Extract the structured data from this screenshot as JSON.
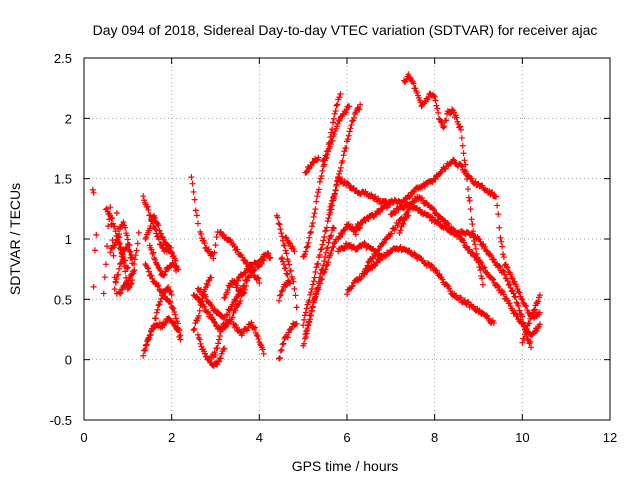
{
  "chart_data": {
    "type": "scatter",
    "title": "Day 094 of 2018, Sidereal Day-to-day VTEC variation (SDTVAR) for receiver ajac",
    "xlabel": "GPS time / hours",
    "ylabel": "SDTVAR / TECUs",
    "xlim": [
      0,
      12
    ],
    "ylim": [
      -0.5,
      2.5
    ],
    "xticks": [
      "0",
      "2",
      "4",
      "6",
      "8",
      "10",
      "12"
    ],
    "yticks": [
      "-0.5",
      "0",
      "0.5",
      "1",
      "1.5",
      "2",
      "2.5"
    ],
    "grid": true,
    "marker": "plus",
    "color": "#ff0000",
    "tracks": [
      [
        [
          0.2,
          1.4
        ],
        [
          0.22,
          1.38
        ]
      ],
      [
        [
          0.22,
          0.6
        ],
        [
          0.25,
          0.9
        ],
        [
          0.28,
          1.05
        ]
      ],
      [
        [
          0.45,
          0.55
        ],
        [
          0.5,
          0.8
        ],
        [
          0.55,
          1.1
        ],
        [
          0.6,
          1.25
        ],
        [
          0.65,
          1.0
        ],
        [
          0.7,
          0.7
        ],
        [
          0.75,
          0.55
        ]
      ],
      [
        [
          0.5,
          1.25
        ],
        [
          0.6,
          1.2
        ],
        [
          0.7,
          1.1
        ],
        [
          0.8,
          0.95
        ],
        [
          0.9,
          0.85
        ],
        [
          1.0,
          0.75
        ]
      ],
      [
        [
          0.6,
          0.9
        ],
        [
          0.7,
          0.95
        ],
        [
          0.8,
          1.05
        ],
        [
          0.9,
          1.15
        ],
        [
          1.0,
          1.0
        ],
        [
          1.1,
          0.85
        ]
      ],
      [
        [
          0.7,
          0.6
        ],
        [
          0.8,
          0.75
        ],
        [
          0.9,
          0.9
        ],
        [
          1.0,
          0.95
        ],
        [
          1.1,
          0.8
        ]
      ],
      [
        [
          0.75,
          1.2
        ],
        [
          0.8,
          1.0
        ],
        [
          0.9,
          0.8
        ],
        [
          1.0,
          0.6
        ],
        [
          1.1,
          0.65
        ],
        [
          1.15,
          0.75
        ]
      ],
      [
        [
          0.8,
          0.55
        ],
        [
          0.9,
          0.6
        ],
        [
          1.0,
          0.65
        ],
        [
          1.1,
          0.7
        ],
        [
          1.2,
          0.9
        ],
        [
          1.25,
          1.05
        ]
      ],
      [
        [
          1.35,
          1.35
        ],
        [
          1.45,
          1.25
        ],
        [
          1.55,
          1.15
        ],
        [
          1.65,
          1.05
        ],
        [
          1.75,
          0.95
        ],
        [
          1.85,
          0.9
        ],
        [
          1.95,
          0.92
        ],
        [
          2.05,
          0.85
        ],
        [
          2.15,
          0.75
        ]
      ],
      [
        [
          1.4,
          1.0
        ],
        [
          1.5,
          1.1
        ],
        [
          1.6,
          1.2
        ],
        [
          1.7,
          1.1
        ],
        [
          1.8,
          1.0
        ],
        [
          1.9,
          0.95
        ],
        [
          2.0,
          0.9
        ]
      ],
      [
        [
          1.5,
          0.95
        ],
        [
          1.6,
          0.85
        ],
        [
          1.7,
          0.75
        ],
        [
          1.8,
          0.7
        ],
        [
          1.9,
          0.75
        ],
        [
          2.0,
          0.8
        ],
        [
          2.1,
          0.75
        ]
      ],
      [
        [
          1.4,
          0.8
        ],
        [
          1.5,
          0.7
        ],
        [
          1.6,
          0.65
        ],
        [
          1.7,
          0.6
        ],
        [
          1.8,
          0.55
        ],
        [
          1.9,
          0.5
        ],
        [
          2.0,
          0.45
        ],
        [
          2.1,
          0.35
        ],
        [
          2.2,
          0.2
        ]
      ],
      [
        [
          1.4,
          0.1
        ],
        [
          1.5,
          0.2
        ],
        [
          1.6,
          0.3
        ],
        [
          1.7,
          0.45
        ],
        [
          1.8,
          0.55
        ],
        [
          1.9,
          0.6
        ],
        [
          2.0,
          0.55
        ]
      ],
      [
        [
          1.35,
          0.05
        ],
        [
          1.45,
          0.15
        ],
        [
          1.55,
          0.25
        ],
        [
          1.65,
          0.3
        ],
        [
          1.75,
          0.28
        ],
        [
          1.85,
          0.3
        ],
        [
          1.95,
          0.35
        ],
        [
          2.05,
          0.3
        ],
        [
          2.15,
          0.25
        ],
        [
          2.2,
          0.15
        ]
      ],
      [
        [
          2.45,
          1.5
        ],
        [
          2.5,
          1.4
        ],
        [
          2.55,
          1.25
        ],
        [
          2.6,
          1.12
        ]
      ],
      [
        [
          2.65,
          1.05
        ],
        [
          2.75,
          0.95
        ],
        [
          2.85,
          0.9
        ],
        [
          2.95,
          0.85
        ],
        [
          3.0,
          0.95
        ],
        [
          3.05,
          1.05
        ]
      ],
      [
        [
          3.1,
          1.05
        ],
        [
          3.3,
          1.0
        ],
        [
          3.5,
          0.9
        ],
        [
          3.7,
          0.8
        ],
        [
          3.9,
          0.7
        ],
        [
          4.0,
          0.65
        ]
      ],
      [
        [
          3.4,
          0.62
        ],
        [
          3.6,
          0.7
        ],
        [
          3.8,
          0.78
        ],
        [
          4.0,
          0.82
        ],
        [
          4.15,
          0.88
        ],
        [
          4.25,
          0.85
        ]
      ],
      [
        [
          2.5,
          0.25
        ],
        [
          2.6,
          0.35
        ],
        [
          2.7,
          0.5
        ],
        [
          2.8,
          0.62
        ],
        [
          2.9,
          0.68
        ]
      ],
      [
        [
          2.6,
          0.6
        ],
        [
          2.8,
          0.5
        ],
        [
          3.0,
          0.4
        ],
        [
          3.2,
          0.35
        ]
      ],
      [
        [
          2.5,
          0.55
        ],
        [
          2.7,
          0.45
        ],
        [
          2.9,
          0.35
        ],
        [
          3.1,
          0.25
        ],
        [
          3.3,
          0.3
        ],
        [
          3.5,
          0.45
        ],
        [
          3.7,
          0.6
        ]
      ],
      [
        [
          3.3,
          0.4
        ],
        [
          3.5,
          0.52
        ],
        [
          3.7,
          0.66
        ],
        [
          3.9,
          0.76
        ],
        [
          4.1,
          0.82
        ]
      ],
      [
        [
          3.2,
          0.5
        ],
        [
          3.3,
          0.6
        ],
        [
          3.4,
          0.65
        ],
        [
          3.5,
          0.6
        ],
        [
          3.6,
          0.55
        ]
      ],
      [
        [
          2.6,
          0.2
        ],
        [
          2.7,
          0.1
        ],
        [
          2.8,
          0.02
        ],
        [
          2.9,
          -0.02
        ],
        [
          3.0,
          -0.05
        ],
        [
          3.1,
          0.0
        ],
        [
          3.2,
          0.1
        ]
      ],
      [
        [
          2.9,
          0.02
        ],
        [
          3.0,
          0.05
        ],
        [
          3.1,
          0.2
        ],
        [
          3.2,
          0.3
        ],
        [
          3.3,
          0.4
        ]
      ],
      [
        [
          3.4,
          0.3
        ],
        [
          3.5,
          0.25
        ],
        [
          3.6,
          0.22
        ],
        [
          3.7,
          0.25
        ],
        [
          3.8,
          0.3
        ],
        [
          3.9,
          0.25
        ],
        [
          4.0,
          0.15
        ],
        [
          4.1,
          0.05
        ]
      ],
      [
        [
          4.4,
          1.2
        ],
        [
          4.5,
          1.05
        ],
        [
          4.6,
          0.9
        ],
        [
          4.7,
          0.75
        ],
        [
          4.8,
          0.6
        ],
        [
          4.85,
          0.45
        ]
      ],
      [
        [
          4.45,
          0.5
        ],
        [
          4.55,
          0.6
        ],
        [
          4.65,
          0.65
        ]
      ],
      [
        [
          4.5,
          0.85
        ],
        [
          4.6,
          0.75
        ],
        [
          4.7,
          0.62
        ]
      ],
      [
        [
          4.6,
          1.0
        ],
        [
          4.7,
          0.95
        ],
        [
          4.8,
          0.9
        ]
      ],
      [
        [
          4.45,
          0.0
        ],
        [
          4.55,
          0.15
        ],
        [
          4.65,
          0.2
        ],
        [
          4.75,
          0.28
        ],
        [
          4.85,
          0.3
        ]
      ],
      [
        [
          5.0,
          0.85
        ],
        [
          5.1,
          0.95
        ],
        [
          5.2,
          1.1
        ],
        [
          5.3,
          1.3
        ],
        [
          5.4,
          1.5
        ],
        [
          5.5,
          1.65
        ],
        [
          5.6,
          1.8
        ],
        [
          5.7,
          2.0
        ],
        [
          5.8,
          2.15
        ],
        [
          5.85,
          2.2
        ]
      ],
      [
        [
          5.05,
          1.55
        ],
        [
          5.15,
          1.6
        ],
        [
          5.25,
          1.65
        ],
        [
          5.35,
          1.68
        ]
      ],
      [
        [
          5.45,
          1.65
        ],
        [
          5.55,
          1.7
        ],
        [
          5.65,
          1.8
        ],
        [
          5.75,
          1.9
        ],
        [
          5.85,
          2.0
        ],
        [
          5.95,
          2.05
        ],
        [
          6.05,
          2.1
        ]
      ],
      [
        [
          5.6,
          1.25
        ],
        [
          5.7,
          1.35
        ],
        [
          5.8,
          1.5
        ],
        [
          5.9,
          1.65
        ],
        [
          6.0,
          1.8
        ],
        [
          6.1,
          1.95
        ],
        [
          6.2,
          2.05
        ],
        [
          6.3,
          2.1
        ]
      ],
      [
        [
          5.0,
          0.3
        ],
        [
          5.1,
          0.45
        ],
        [
          5.2,
          0.6
        ],
        [
          5.3,
          0.75
        ],
        [
          5.4,
          0.9
        ],
        [
          5.5,
          1.05
        ],
        [
          5.6,
          1.2
        ],
        [
          5.7,
          1.35
        ],
        [
          5.8,
          1.5
        ]
      ],
      [
        [
          5.0,
          0.1
        ],
        [
          5.1,
          0.25
        ],
        [
          5.2,
          0.4
        ],
        [
          5.3,
          0.55
        ],
        [
          5.4,
          0.7
        ],
        [
          5.5,
          0.85
        ],
        [
          5.6,
          1.0
        ],
        [
          5.7,
          1.1
        ]
      ],
      [
        [
          5.05,
          0.2
        ],
        [
          5.15,
          0.35
        ],
        [
          5.25,
          0.5
        ],
        [
          5.35,
          0.6
        ],
        [
          5.45,
          0.7
        ],
        [
          5.55,
          0.8
        ],
        [
          5.65,
          0.9
        ],
        [
          5.75,
          1.0
        ]
      ],
      [
        [
          5.8,
          1.5
        ],
        [
          6.0,
          1.45
        ],
        [
          6.2,
          1.4
        ],
        [
          6.4,
          1.38
        ],
        [
          6.6,
          1.35
        ],
        [
          6.8,
          1.3
        ],
        [
          7.0,
          1.3
        ],
        [
          7.2,
          1.32
        ]
      ],
      [
        [
          5.8,
          1.0
        ],
        [
          5.9,
          1.05
        ],
        [
          6.0,
          1.12
        ],
        [
          6.1,
          1.1
        ],
        [
          6.2,
          1.05
        ],
        [
          6.3,
          1.1
        ]
      ],
      [
        [
          5.8,
          0.9
        ],
        [
          6.0,
          0.95
        ],
        [
          6.2,
          0.92
        ],
        [
          6.4,
          0.95
        ],
        [
          6.6,
          0.9
        ],
        [
          6.8,
          0.85
        ]
      ],
      [
        [
          6.0,
          0.55
        ],
        [
          6.2,
          0.65
        ],
        [
          6.4,
          0.72
        ],
        [
          6.6,
          0.78
        ],
        [
          6.8,
          0.85
        ],
        [
          7.0,
          0.9
        ],
        [
          7.2,
          0.92
        ],
        [
          7.4,
          0.9
        ],
        [
          7.6,
          0.85
        ]
      ],
      [
        [
          6.2,
          1.1
        ],
        [
          6.4,
          1.15
        ],
        [
          6.6,
          1.2
        ],
        [
          6.8,
          1.25
        ],
        [
          7.0,
          1.3
        ]
      ],
      [
        [
          6.4,
          0.75
        ],
        [
          6.6,
          0.85
        ],
        [
          6.8,
          0.95
        ],
        [
          7.0,
          1.05
        ],
        [
          7.2,
          1.15
        ],
        [
          7.4,
          1.2
        ]
      ],
      [
        [
          7.3,
          2.3
        ],
        [
          7.4,
          2.35
        ],
        [
          7.5,
          2.3
        ],
        [
          7.6,
          2.2
        ],
        [
          7.7,
          2.1
        ],
        [
          7.8,
          2.15
        ],
        [
          7.9,
          2.2
        ],
        [
          8.0,
          2.18
        ],
        [
          8.1,
          2.0
        ],
        [
          8.2,
          1.92
        ],
        [
          8.3,
          2.05
        ],
        [
          8.4,
          2.06
        ],
        [
          8.5,
          2.0
        ],
        [
          8.6,
          1.9
        ],
        [
          8.7,
          1.6
        ],
        [
          8.8,
          1.3
        ],
        [
          8.9,
          1.0
        ],
        [
          9.0,
          0.8
        ],
        [
          9.1,
          0.62
        ]
      ],
      [
        [
          7.2,
          1.3
        ],
        [
          7.4,
          1.35
        ],
        [
          7.6,
          1.42
        ],
        [
          7.8,
          1.45
        ],
        [
          8.0,
          1.5
        ],
        [
          8.2,
          1.58
        ],
        [
          8.4,
          1.65
        ],
        [
          8.6,
          1.6
        ],
        [
          8.8,
          1.5
        ],
        [
          9.0,
          1.45
        ],
        [
          9.2,
          1.4
        ],
        [
          9.4,
          1.35
        ],
        [
          9.45,
          1.2
        ],
        [
          9.5,
          1.0
        ],
        [
          9.6,
          0.8
        ],
        [
          9.8,
          0.65
        ],
        [
          10.0,
          0.5
        ],
        [
          10.2,
          0.35
        ],
        [
          10.4,
          0.38
        ]
      ],
      [
        [
          7.0,
          1.2
        ],
        [
          7.2,
          1.25
        ],
        [
          7.4,
          1.28
        ],
        [
          7.6,
          1.25
        ],
        [
          7.8,
          1.2
        ],
        [
          8.0,
          1.15
        ],
        [
          8.2,
          1.1
        ],
        [
          8.4,
          1.05
        ],
        [
          8.6,
          1.05
        ],
        [
          8.8,
          1.05
        ],
        [
          9.0,
          1.0
        ],
        [
          9.2,
          0.9
        ],
        [
          9.4,
          0.8
        ],
        [
          9.6,
          0.7
        ],
        [
          9.8,
          0.55
        ],
        [
          10.0,
          0.35
        ],
        [
          10.1,
          0.2
        ],
        [
          10.2,
          0.12
        ]
      ],
      [
        [
          7.2,
          1.05
        ],
        [
          7.4,
          1.25
        ],
        [
          7.6,
          1.35
        ],
        [
          7.8,
          1.3
        ],
        [
          8.0,
          1.22
        ],
        [
          8.2,
          1.15
        ],
        [
          8.4,
          1.08
        ],
        [
          8.6,
          1.0
        ],
        [
          8.8,
          0.9
        ],
        [
          9.0,
          0.82
        ],
        [
          9.2,
          0.72
        ],
        [
          9.4,
          0.62
        ],
        [
          9.6,
          0.52
        ],
        [
          9.8,
          0.4
        ],
        [
          10.0,
          0.3
        ],
        [
          10.2,
          0.2
        ],
        [
          10.4,
          0.28
        ]
      ],
      [
        [
          7.6,
          0.85
        ],
        [
          7.8,
          0.8
        ],
        [
          8.0,
          0.75
        ],
        [
          8.2,
          0.65
        ],
        [
          8.4,
          0.55
        ],
        [
          8.6,
          0.5
        ],
        [
          8.8,
          0.45
        ],
        [
          9.0,
          0.4
        ],
        [
          9.2,
          0.35
        ],
        [
          9.35,
          0.3
        ]
      ],
      [
        [
          10.0,
          0.15
        ],
        [
          10.1,
          0.25
        ],
        [
          10.2,
          0.35
        ],
        [
          10.3,
          0.45
        ],
        [
          10.4,
          0.52
        ]
      ]
    ]
  }
}
